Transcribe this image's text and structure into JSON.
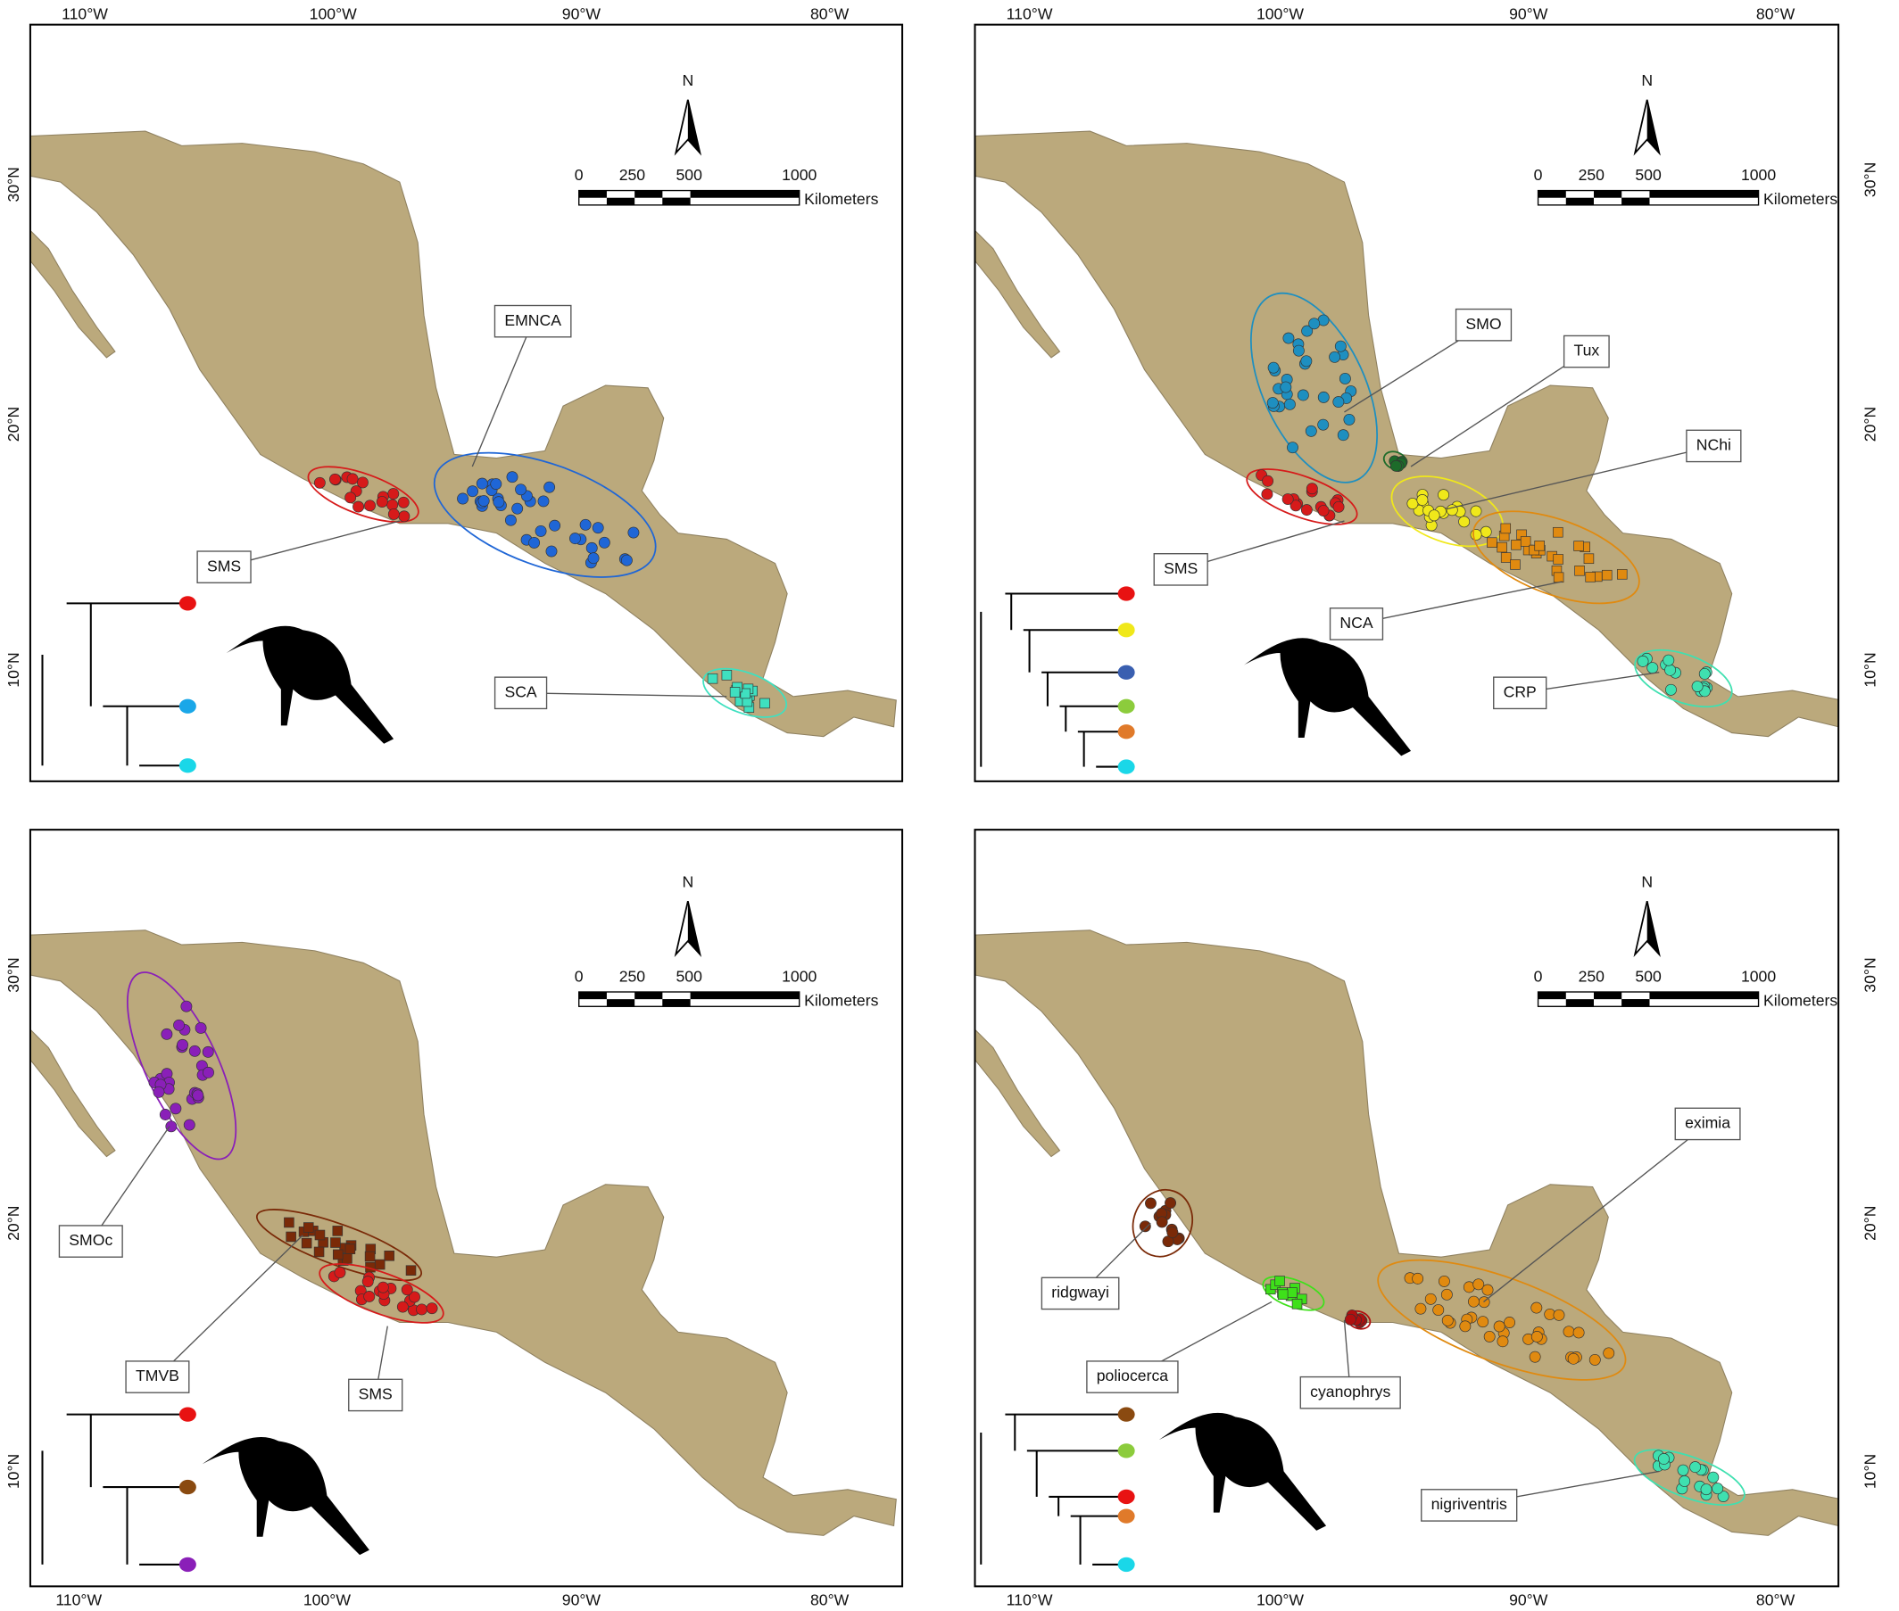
{
  "panels": [
    {
      "lon_labels": [
        "110°W",
        "100°W",
        "90°W",
        "80°W"
      ],
      "lat_labels": [
        "30°N",
        "20°N",
        "10°N"
      ],
      "north": "N",
      "scale_labels": [
        "0",
        "250",
        "500",
        "1000"
      ],
      "scale_unit": "Kilometers",
      "regions": [
        {
          "label": "EMNCA",
          "color": "#1f66d6"
        },
        {
          "label": "SMS",
          "color": "#d61a1a"
        },
        {
          "label": "SCA",
          "color": "#3fe0c0"
        }
      ]
    },
    {
      "lon_labels": [
        "110°W",
        "100°W",
        "90°W",
        "80°W"
      ],
      "lat_labels": [
        "30°N",
        "20°N",
        "10°N"
      ],
      "north": "N",
      "scale_labels": [
        "0",
        "250",
        "500",
        "1000"
      ],
      "scale_unit": "Kilometers",
      "regions": [
        {
          "label": "SMO",
          "color": "#1e8fc0"
        },
        {
          "label": "Tux",
          "color": "#1d6b2a"
        },
        {
          "label": "NChi",
          "color": "#f0e81a"
        },
        {
          "label": "SMS",
          "color": "#d61a1a"
        },
        {
          "label": "NCA",
          "color": "#e08a10"
        },
        {
          "label": "CRP",
          "color": "#3fe0b0"
        }
      ]
    },
    {
      "lon_labels": [
        "110°W",
        "100°W",
        "90°W",
        "80°W"
      ],
      "lat_labels": [
        "30°N",
        "20°N",
        "10°N"
      ],
      "north": "N",
      "scale_labels": [
        "0",
        "250",
        "500",
        "1000"
      ],
      "scale_unit": "Kilometers",
      "regions": [
        {
          "label": "SMOc",
          "color": "#8a1fb8"
        },
        {
          "label": "TMVB",
          "color": "#7a2a08"
        },
        {
          "label": "SMS",
          "color": "#d61a1a"
        }
      ]
    },
    {
      "lon_labels": [
        "110°W",
        "100°W",
        "90°W",
        "80°W"
      ],
      "lat_labels": [
        "30°N",
        "20°N",
        "10°N"
      ],
      "north": "N",
      "scale_labels": [
        "0",
        "250",
        "500",
        "1000"
      ],
      "scale_unit": "Kilometers",
      "regions": [
        {
          "label": "eximia",
          "color": "#e08a10"
        },
        {
          "label": "ridgwayi",
          "color": "#7a2a08"
        },
        {
          "label": "poliocerca",
          "color": "#3ee01a"
        },
        {
          "label": "cyanophrys",
          "color": "#b01010"
        },
        {
          "label": "nigriventris",
          "color": "#3fe0b0"
        }
      ]
    }
  ]
}
